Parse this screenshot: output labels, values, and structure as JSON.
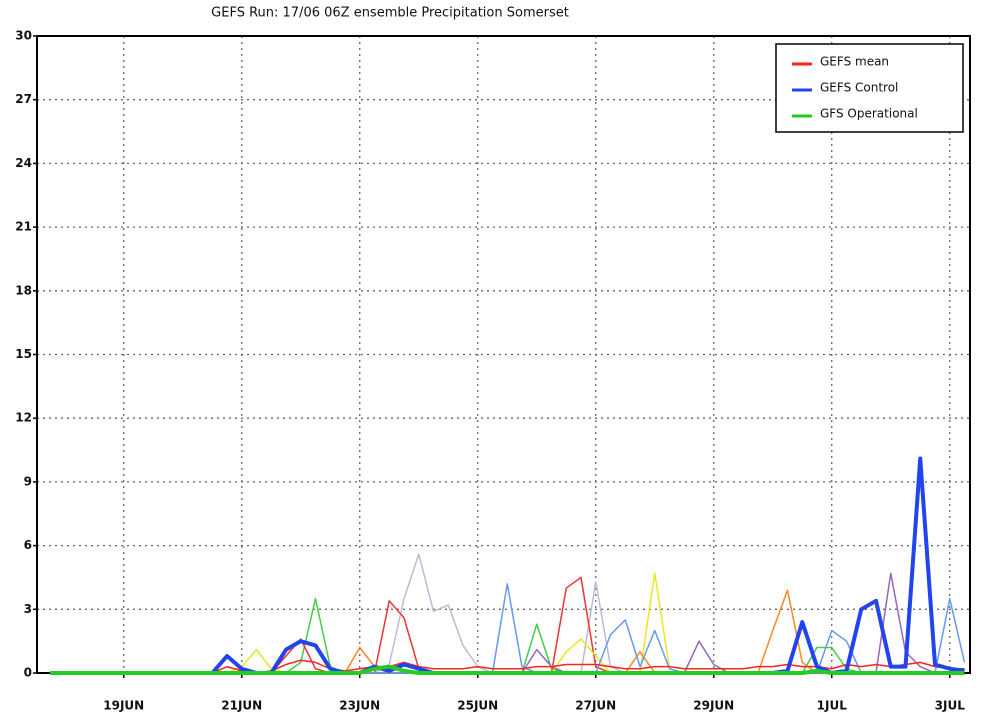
{
  "chart_data": {
    "type": "line",
    "title": "GEFS Run: 17/06 06Z ensemble Precipitation Somerset",
    "categories": [
      null,
      null,
      null,
      null,
      null,
      "19JUN",
      null,
      null,
      null,
      null,
      null,
      null,
      null,
      "21JUN",
      null,
      null,
      null,
      null,
      null,
      null,
      null,
      "23JUN",
      null,
      null,
      null,
      null,
      null,
      null,
      null,
      "25JUN",
      null,
      null,
      null,
      null,
      null,
      null,
      null,
      "27JUN",
      null,
      null,
      null,
      null,
      null,
      null,
      null,
      "29JUN",
      null,
      null,
      null,
      null,
      null,
      null,
      null,
      "1JUL",
      null,
      null,
      null,
      null,
      null,
      null,
      null,
      "3JUL",
      null
    ],
    "ylim": [
      0,
      30
    ],
    "yticks": [
      0,
      3,
      6,
      9,
      12,
      15,
      18,
      21,
      24,
      27,
      30
    ],
    "grid": true,
    "legend": "upper right",
    "series": [
      {
        "color": "#bbbbd8",
        "linewidth": 1.5,
        "values": [
          0,
          0,
          0,
          0,
          0,
          0,
          0,
          0,
          0,
          0,
          0,
          0,
          0,
          0,
          0,
          0,
          0,
          0,
          0,
          0,
          0,
          0,
          0,
          0.4,
          3.5,
          5.6,
          2.9,
          3.2,
          1.3,
          0.3,
          0,
          0,
          0,
          0,
          0,
          0,
          0,
          4.3,
          0.3,
          0,
          0,
          0,
          0,
          0,
          0,
          0,
          0,
          0,
          0,
          0,
          0,
          0,
          0,
          0,
          0,
          0,
          0,
          0,
          0,
          0,
          0,
          0,
          0
        ]
      },
      {
        "color": "#44cc44",
        "linewidth": 1.5,
        "values": [
          0,
          0,
          0,
          0,
          0,
          0,
          0,
          0,
          0,
          0,
          0,
          0,
          0,
          0,
          0,
          0,
          0,
          0.5,
          3.5,
          0.3,
          0,
          0,
          0,
          0,
          0,
          0,
          0,
          0,
          0,
          0,
          0,
          0,
          0,
          2.3,
          0.2,
          0,
          0,
          0,
          0,
          0,
          0,
          0,
          0,
          0,
          0,
          0,
          0,
          0,
          0,
          0,
          0,
          0,
          1.2,
          1.2,
          0.2,
          0,
          0,
          0,
          0,
          0,
          0,
          0,
          0
        ]
      },
      {
        "color": "#ee3333",
        "linewidth": 1.5,
        "values": [
          0,
          0,
          0,
          0,
          0,
          0,
          0,
          0,
          0,
          0,
          0,
          0,
          0,
          0,
          0,
          0,
          0.8,
          1.6,
          0.2,
          0,
          0,
          0,
          0,
          3.4,
          2.6,
          0.2,
          0,
          0,
          0,
          0,
          0,
          0,
          0,
          0,
          0,
          4.0,
          4.5,
          0.3,
          0,
          0,
          0,
          0,
          0,
          0,
          0,
          0,
          0,
          0,
          0,
          0,
          0,
          0,
          0,
          0,
          0,
          0,
          0,
          0,
          0,
          0,
          0,
          0,
          0
        ]
      },
      {
        "color": "#e8e822",
        "linewidth": 1.5,
        "values": [
          0,
          0,
          0,
          0,
          0,
          0,
          0,
          0,
          0,
          0,
          0,
          0,
          0,
          0.3,
          1.1,
          0.2,
          0,
          0,
          0,
          0,
          0,
          0,
          0,
          0,
          0,
          0,
          0,
          0,
          0,
          0,
          0,
          0,
          0,
          0,
          0,
          1.0,
          1.6,
          0.8,
          0,
          0,
          0,
          4.7,
          0.2,
          0,
          0,
          0,
          0,
          0,
          0,
          0,
          0,
          0,
          0,
          0,
          0,
          0,
          0,
          0,
          0,
          0,
          0,
          0,
          0
        ]
      },
      {
        "color": "#ff8822",
        "linewidth": 1.5,
        "values": [
          0,
          0,
          0,
          0,
          0,
          0,
          0,
          0,
          0,
          0,
          0,
          0,
          0,
          0,
          0,
          0,
          0,
          0,
          0,
          0,
          0,
          1.2,
          0.3,
          0,
          0,
          0,
          0,
          0,
          0,
          0,
          0,
          0,
          0,
          0,
          0,
          0,
          0,
          0,
          0,
          0,
          1.0,
          0,
          0,
          0,
          0,
          0,
          0,
          0,
          0,
          2.0,
          3.9,
          0.5,
          0,
          0,
          0,
          0,
          0,
          0,
          0,
          0,
          0,
          0,
          0
        ]
      },
      {
        "color": "#9966bb",
        "linewidth": 1.5,
        "values": [
          0,
          0,
          0,
          0,
          0,
          0,
          0,
          0,
          0,
          0,
          0,
          0,
          0,
          0,
          0,
          0,
          0,
          0,
          0,
          0,
          0,
          0,
          0,
          0,
          0,
          0,
          0,
          0,
          0,
          0,
          0,
          0,
          0,
          1.1,
          0.3,
          0,
          0,
          0,
          0,
          0,
          0,
          0,
          0,
          0,
          1.5,
          0.4,
          0,
          0,
          0,
          0,
          0,
          0,
          0,
          0,
          0,
          0,
          0,
          4.7,
          1.0,
          0.3,
          0,
          0,
          0
        ]
      },
      {
        "color": "#6699ee",
        "linewidth": 1.5,
        "values": [
          0,
          0,
          0,
          0,
          0,
          0,
          0,
          0,
          0,
          0,
          0,
          0,
          0,
          0,
          0,
          0,
          0,
          0,
          0,
          0,
          0,
          0,
          0,
          0,
          0,
          0,
          0,
          0,
          0,
          0,
          0,
          4.2,
          0.3,
          0,
          0,
          0,
          0,
          0,
          1.8,
          2.5,
          0.3,
          2.0,
          0.2,
          0,
          0,
          0,
          0,
          0,
          0,
          0,
          0,
          0,
          0,
          2.0,
          1.5,
          0,
          0,
          0,
          0,
          0,
          0,
          3.5,
          0.5
        ]
      },
      {
        "name": "GEFS mean",
        "color": "#ff2222",
        "linewidth": 1.5,
        "values": [
          0,
          0,
          0,
          0,
          0,
          0,
          0,
          0,
          0,
          0,
          0,
          0,
          0.3,
          0.1,
          0,
          0.1,
          0.4,
          0.6,
          0.5,
          0.2,
          0.1,
          0.2,
          0.3,
          0.3,
          0.5,
          0.3,
          0.2,
          0.2,
          0.2,
          0.3,
          0.2,
          0.2,
          0.2,
          0.3,
          0.3,
          0.4,
          0.4,
          0.4,
          0.3,
          0.2,
          0.2,
          0.3,
          0.3,
          0.2,
          0.2,
          0.2,
          0.2,
          0.2,
          0.3,
          0.3,
          0.4,
          0.3,
          0.3,
          0.2,
          0.4,
          0.3,
          0.4,
          0.3,
          0.4,
          0.5,
          0.3,
          0.2,
          0.2
        ]
      },
      {
        "name": "GEFS Control",
        "color": "#2244ee",
        "linewidth": 4,
        "values": [
          0,
          0,
          0,
          0,
          0,
          0,
          0,
          0,
          0,
          0,
          0,
          0,
          0.8,
          0.2,
          0,
          0,
          1.1,
          1.5,
          1.3,
          0.2,
          0,
          0,
          0.3,
          0.1,
          0.4,
          0.2,
          0,
          0,
          0,
          0,
          0,
          0,
          0,
          0,
          0,
          0,
          0,
          0,
          0,
          0,
          0,
          0,
          0,
          0,
          0,
          0,
          0,
          0,
          0,
          0,
          0.1,
          2.4,
          0.3,
          0,
          0.1,
          3.0,
          3.4,
          0.3,
          0.3,
          10.1,
          0.4,
          0.2,
          0.1
        ]
      },
      {
        "name": "GFS Operational",
        "color": "#22cc22",
        "linewidth": 4,
        "values": [
          0,
          0,
          0,
          0,
          0,
          0,
          0,
          0,
          0,
          0,
          0,
          0,
          0,
          0,
          0,
          0,
          0,
          0,
          0,
          0,
          0,
          0,
          0.2,
          0.3,
          0.1,
          0,
          0,
          0,
          0,
          0,
          0,
          0,
          0,
          0,
          0,
          0,
          0,
          0,
          0,
          0,
          0,
          0,
          0,
          0,
          0,
          0,
          0,
          0,
          0,
          0,
          0,
          0,
          0.1,
          0,
          0,
          0,
          0,
          0,
          0,
          0,
          0,
          0,
          0
        ]
      }
    ]
  }
}
